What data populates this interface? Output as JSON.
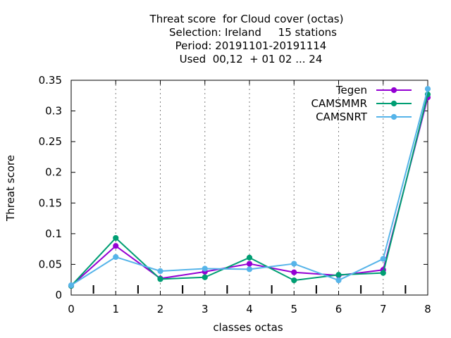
{
  "chart_data": {
    "type": "line",
    "title_lines": [
      "Threat score  for Cloud cover (octas)",
      "Selection: Ireland     15 stations",
      "Period: 20191101-20191114",
      "Used  00,12  + 01 02 ... 24"
    ],
    "xlabel": "classes octas",
    "ylabel": "Threat score",
    "x": [
      0,
      1,
      2,
      3,
      4,
      5,
      6,
      7,
      8
    ],
    "xlim": [
      0,
      8
    ],
    "ylim": [
      0,
      0.35
    ],
    "x_ticks": [
      "0",
      "1",
      "2",
      "3",
      "4",
      "5",
      "6",
      "7",
      "8"
    ],
    "y_ticks": [
      {
        "value": 0,
        "label": "0"
      },
      {
        "value": 0.05,
        "label": "0.05"
      },
      {
        "value": 0.1,
        "label": "0.1"
      },
      {
        "value": 0.15,
        "label": "0.15"
      },
      {
        "value": 0.2,
        "label": "0.2"
      },
      {
        "value": 0.25,
        "label": "0.25"
      },
      {
        "value": 0.3,
        "label": "0.3"
      },
      {
        "value": 0.35,
        "label": "0.35"
      }
    ],
    "grid": "vertical dotted at x ticks",
    "legend_position": "top-right",
    "series": [
      {
        "name": "Tegen",
        "color": "#9400d3",
        "values": [
          0.015,
          0.08,
          0.027,
          0.038,
          0.051,
          0.037,
          0.032,
          0.041,
          0.322
        ]
      },
      {
        "name": "CAMSMMR",
        "color": "#009e73",
        "values": [
          0.015,
          0.093,
          0.026,
          0.029,
          0.061,
          0.024,
          0.033,
          0.036,
          0.327
        ]
      },
      {
        "name": "CAMSNRT",
        "color": "#56b4e9",
        "values": [
          0.016,
          0.062,
          0.039,
          0.043,
          0.042,
          0.051,
          0.024,
          0.059,
          0.336
        ]
      }
    ]
  }
}
